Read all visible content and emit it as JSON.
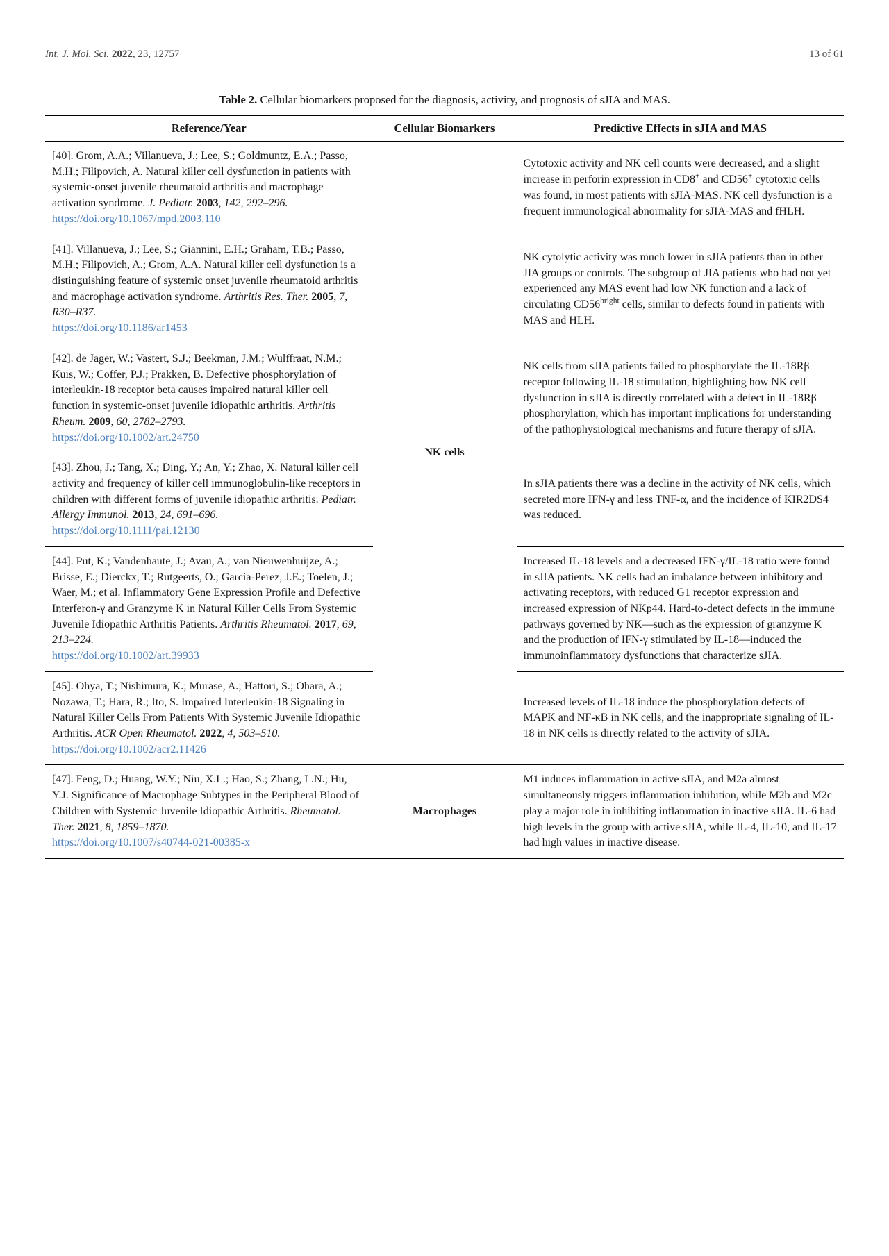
{
  "header": {
    "journal_italic": "Int. J. Mol. Sci.",
    "year_bold": "2022",
    "rest": ", 23, 12757",
    "page": "13 of 61"
  },
  "caption": {
    "label": "Table 2.",
    "text": " Cellular biomarkers proposed for the diagnosis, activity, and prognosis of sJIA and MAS."
  },
  "columns": {
    "ref": "Reference/Year",
    "bio": "Cellular Biomarkers",
    "eff": "Predictive Effects in sJIA and MAS"
  },
  "rows": [
    {
      "ref_pre": "[40]. Grom, A.A.; Villanueva, J.; Lee, S.; Goldmuntz, E.A.; Passo, M.H.; Filipovich, A. Natural killer cell dysfunction in patients with systemic-onset juvenile rheumatoid arthritis and macrophage activation syndrome. ",
      "ref_ital": "J. Pediatr.",
      "ref_post": " 2003, 142, 292–296.",
      "ref_year_bold": "2003",
      "ref_after_ital": ", 142, 292–296.",
      "doi": "https://doi.org/10.1067/mpd.2003.110",
      "biomarker": "NK cells",
      "effect_html": "Cytotoxic activity and NK cell counts were decreased, and a slight increase in perforin expression in CD8<sup>+</sup> and CD56<sup>+</sup> cytotoxic cells was found, in most patients with sJIA-MAS. NK cell dysfunction is a frequent immunological abnormality for sJIA-MAS and fHLH.",
      "rowspan_bio": 6
    },
    {
      "ref_pre": "[41]. Villanueva, J.; Lee, S.; Giannini, E.H.; Graham, T.B.; Passo, M.H.; Filipovich, A.; Grom, A.A. Natural killer cell dysfunction is a distinguishing feature of systemic onset juvenile rheumatoid arthritis and macrophage activation syndrome. ",
      "ref_ital": "Arthritis Res. Ther.",
      "ref_year_bold": "2005",
      "ref_after_ital": ", 7, R30–R37.",
      "doi": "https://doi.org/10.1186/ar1453",
      "effect_html": "NK cytolytic activity was much lower in sJIA patients than in other JIA groups or controls. The subgroup of JIA patients who had not yet experienced any MAS event had low NK function and a lack of circulating CD56<sup>bright</sup> cells, similar to defects found in patients with MAS and HLH."
    },
    {
      "ref_pre": "[42]. de Jager, W.; Vastert, S.J.; Beekman, J.M.; Wulffraat, N.M.; Kuis, W.; Coffer, P.J.; Prakken, B. Defective phosphorylation of interleukin-18 receptor beta causes impaired natural killer cell function in systemic-onset juvenile idiopathic arthritis. ",
      "ref_ital": "Arthritis Rheum.",
      "ref_year_bold": "2009",
      "ref_after_ital": ", 60, 2782–2793.",
      "doi": "https://doi.org/10.1002/art.24750",
      "effect_html": "NK cells from sJIA patients failed to phosphorylate the IL-18Rβ receptor following IL-18 stimulation, highlighting how NK cell dysfunction in sJIA is directly correlated with a defect in IL-18Rβ phosphorylation, which has important implications for understanding of the pathophysiological mechanisms and future therapy of sJIA."
    },
    {
      "ref_pre": "[43]. Zhou, J.; Tang, X.; Ding, Y.; An, Y.; Zhao, X. Natural killer cell activity and frequency of killer cell immunoglobulin-like receptors in children with different forms of juvenile idiopathic arthritis. ",
      "ref_ital": "Pediatr. Allergy Immunol.",
      "ref_year_bold": "2013",
      "ref_after_ital": ", 24, 691–696.",
      "doi": "https://doi.org/10.1111/pai.12130",
      "effect_html": "In sJIA patients there was a decline in the activity of NK cells, which secreted more IFN-γ and less TNF-α, and the incidence of KIR2DS4 was reduced."
    },
    {
      "ref_pre": "[44]. Put, K.; Vandenhaute, J.; Avau, A.; van Nieuwenhuijze, A.; Brisse, E.; Dierckx, T.; Rutgeerts, O.; Garcia-Perez, J.E.; Toelen, J.; Waer, M.; et al. Inflammatory Gene Expression Profile and Defective Interferon-γ and Granzyme K in Natural Killer Cells From Systemic Juvenile Idiopathic Arthritis Patients. ",
      "ref_ital": "Arthritis Rheumatol.",
      "ref_year_bold": "2017",
      "ref_after_ital": ", 69, 213–224.",
      "doi": "https://doi.org/10.1002/art.39933",
      "effect_html": "Increased IL-18 levels and a decreased IFN-γ/IL-18 ratio were found in sJIA patients. NK cells had an imbalance between inhibitory and activating receptors, with reduced G1 receptor expression and increased expression of NKp44. Hard-to-detect defects in the immune pathways governed by NK—such as the expression of granzyme K and the production of IFN-γ stimulated by IL-18—induced the immunoinflammatory dysfunctions that characterize sJIA."
    },
    {
      "ref_pre": "[45]. Ohya, T.; Nishimura, K.; Murase, A.; Hattori, S.; Ohara, A.; Nozawa, T.; Hara, R.; Ito, S. Impaired Interleukin-18 Signaling in Natural Killer Cells From Patients With Systemic Juvenile Idiopathic Arthritis. ",
      "ref_ital": "ACR Open Rheumatol.",
      "ref_year_bold": "2022",
      "ref_after_ital": ", 4, 503–510.",
      "doi": "https://doi.org/10.1002/acr2.11426",
      "effect_html": "Increased levels of IL-18 induce the phosphorylation defects of MAPK and NF-κB in NK cells, and the inappropriate signaling of IL-18 in NK cells is directly related to the activity of sJIA."
    },
    {
      "ref_pre": "[47]. Feng, D.; Huang, W.Y.; Niu, X.L.; Hao, S.; Zhang, L.N.; Hu, Y.J. Significance of Macrophage Subtypes in the Peripheral Blood of Children with Systemic Juvenile Idiopathic Arthritis. ",
      "ref_ital": "Rheumatol. Ther.",
      "ref_year_bold": "2021",
      "ref_after_ital": ", 8, 1859–1870.",
      "doi": "https://doi.org/10.1007/s40744-021-00385-x",
      "biomarker": "Macrophages",
      "effect_html": "M1 induces inflammation in active sJIA, and M2a almost simultaneously triggers inflammation inhibition, while M2b and M2c play a major role in inhibiting inflammation in inactive sJIA. IL-6 had high levels in the group with active sJIA, while IL-4, IL-10, and IL-17 had high values in inactive disease.",
      "rowspan_bio": 1
    }
  ]
}
